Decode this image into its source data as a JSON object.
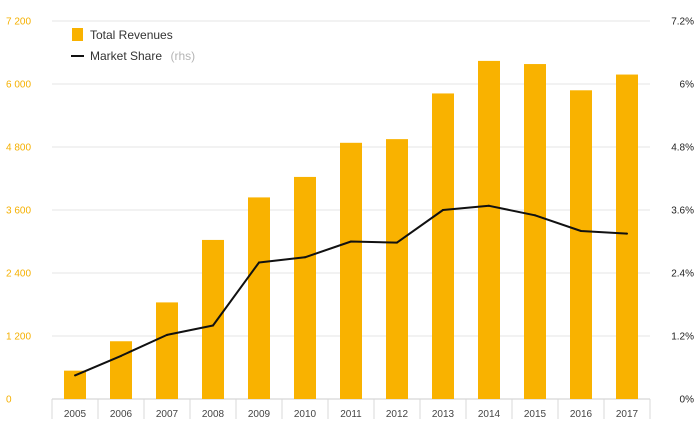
{
  "chart_data": {
    "type": "bar+line",
    "categories": [
      "2005",
      "2006",
      "2007",
      "2008",
      "2009",
      "2010",
      "2011",
      "2012",
      "2013",
      "2014",
      "2015",
      "2016",
      "2017"
    ],
    "series": [
      {
        "name": "Total Revenues",
        "type": "bar",
        "axis": "left",
        "color": "#f9b200",
        "values": [
          540,
          1100,
          1840,
          3030,
          3840,
          4230,
          4880,
          4950,
          5820,
          6440,
          6380,
          5880,
          6180
        ]
      },
      {
        "name": "Market Share",
        "name_note": "(rhs)",
        "type": "line",
        "axis": "right",
        "color": "#111111",
        "values": [
          0.45,
          0.82,
          1.22,
          1.4,
          2.6,
          2.7,
          3.0,
          2.98,
          3.6,
          3.68,
          3.5,
          3.2,
          3.15
        ]
      }
    ],
    "left_axis": {
      "min": 0,
      "max": 7200,
      "ticks": [
        "0",
        "1 200",
        "2 400",
        "3 600",
        "4 800",
        "6 000",
        "7 200"
      ]
    },
    "right_axis": {
      "min": 0,
      "max": 7.2,
      "ticks": [
        "0%",
        "1.2%",
        "2.4%",
        "3.6%",
        "4.8%",
        "6%",
        "7.2%"
      ]
    },
    "grid": true,
    "legend_position": "top-left"
  }
}
